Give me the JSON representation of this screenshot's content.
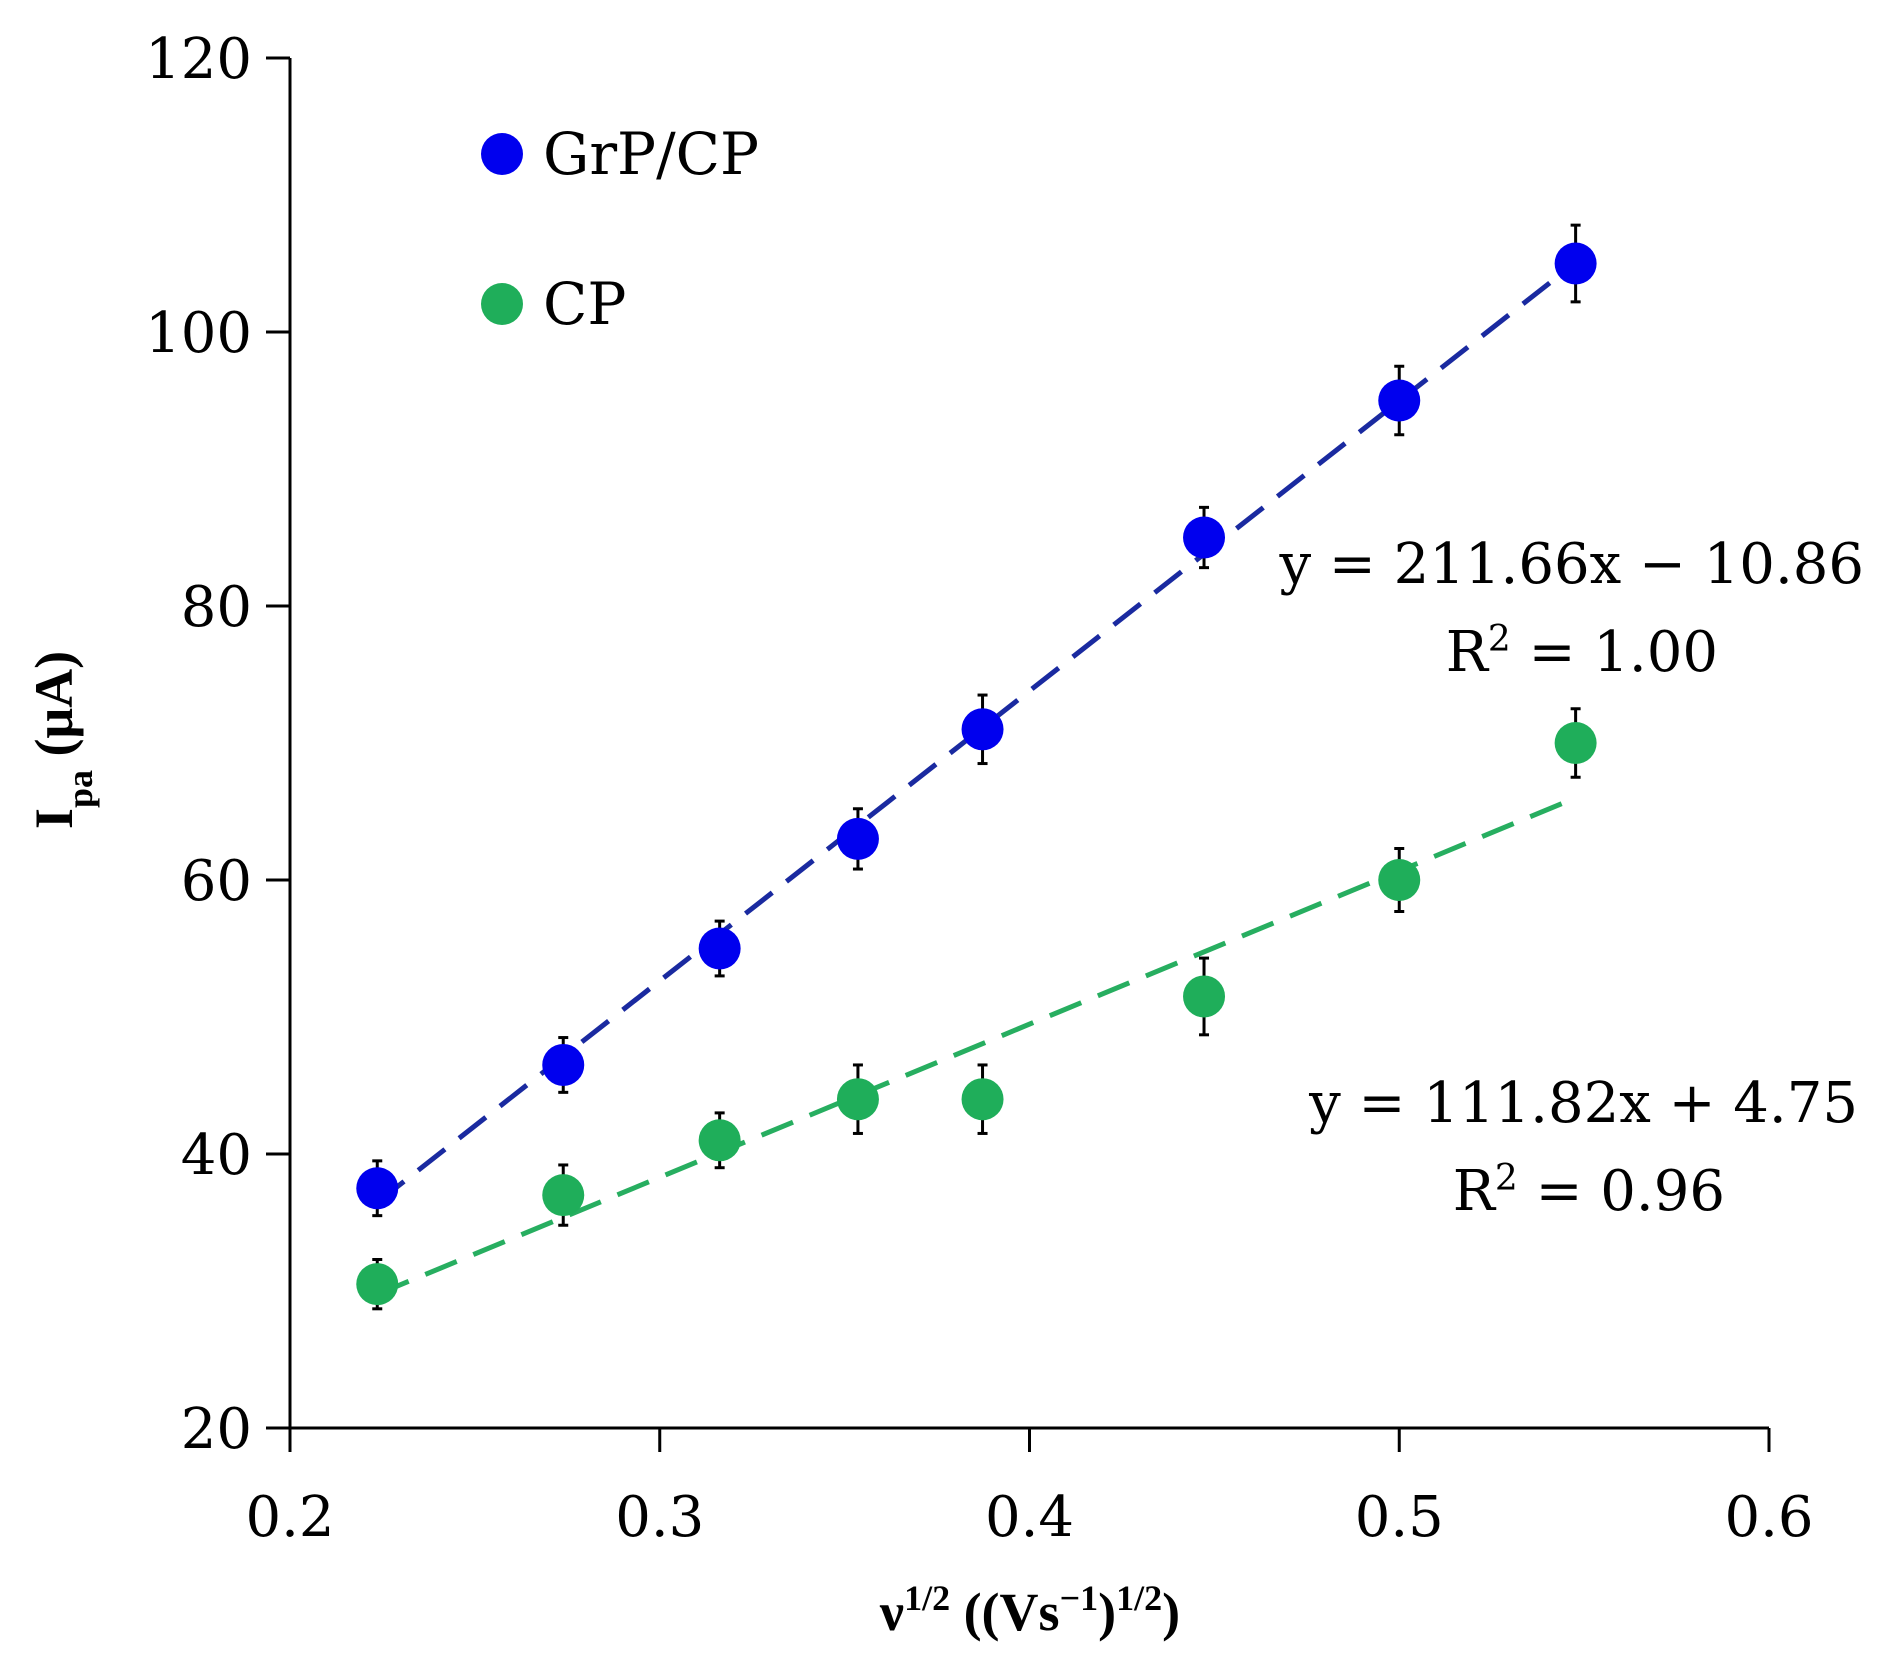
{
  "chart_data": {
    "type": "scatter",
    "title": "",
    "xlabel": {
      "base": "ν",
      "sup1": "1/2",
      "mid": " ((Vs",
      "sup2": "−1",
      "end": ")",
      "sup3": "1/2",
      "close": ")"
    },
    "ylabel": {
      "base": "I",
      "sub": "pa",
      "unit": " (μA)"
    },
    "xlim": [
      0.2,
      0.6
    ],
    "ylim": [
      20,
      120
    ],
    "xticks": [
      0.2,
      0.3,
      0.4,
      0.5,
      0.6
    ],
    "xtick_labels": [
      "0.2",
      "0.3",
      "0.4",
      "0.5",
      "0.6"
    ],
    "yticks": [
      20,
      40,
      60,
      80,
      100,
      120
    ],
    "ytick_labels": [
      "20",
      "40",
      "60",
      "80",
      "100",
      "120"
    ],
    "grid": false,
    "legend_position": "top-left",
    "series": [
      {
        "name": "GrP/CP",
        "color": "#0000ee",
        "trend_color": "#1a2aa0",
        "x": [
          0.2236,
          0.2739,
          0.3162,
          0.3536,
          0.3873,
          0.4472,
          0.5,
          0.5477
        ],
        "y": [
          37.5,
          46.5,
          55,
          63,
          71,
          85,
          95,
          105
        ],
        "err": [
          2.0,
          2.0,
          2.0,
          2.2,
          2.5,
          2.2,
          2.5,
          2.8
        ],
        "fit": {
          "slope": 211.66,
          "intercept": -10.86,
          "equation": "y = 211.66x − 10.86",
          "r2_prefix": "R",
          "r2_sup": "2",
          "r2_value": " = 1.00"
        }
      },
      {
        "name": "CP",
        "color": "#1fae5a",
        "trend_color": "#27ae60",
        "x": [
          0.2236,
          0.2739,
          0.3162,
          0.3536,
          0.3873,
          0.4472,
          0.5,
          0.5477
        ],
        "y": [
          30.5,
          37,
          41,
          44,
          44,
          51.5,
          60,
          70
        ],
        "err": [
          1.8,
          2.2,
          2.0,
          2.5,
          2.5,
          2.8,
          2.3,
          2.5
        ],
        "fit": {
          "slope": 111.82,
          "intercept": 4.75,
          "equation": "y = 111.82x + 4.75",
          "r2_prefix": "R",
          "r2_sup": "2",
          "r2_value": " = 0.96"
        }
      }
    ]
  }
}
